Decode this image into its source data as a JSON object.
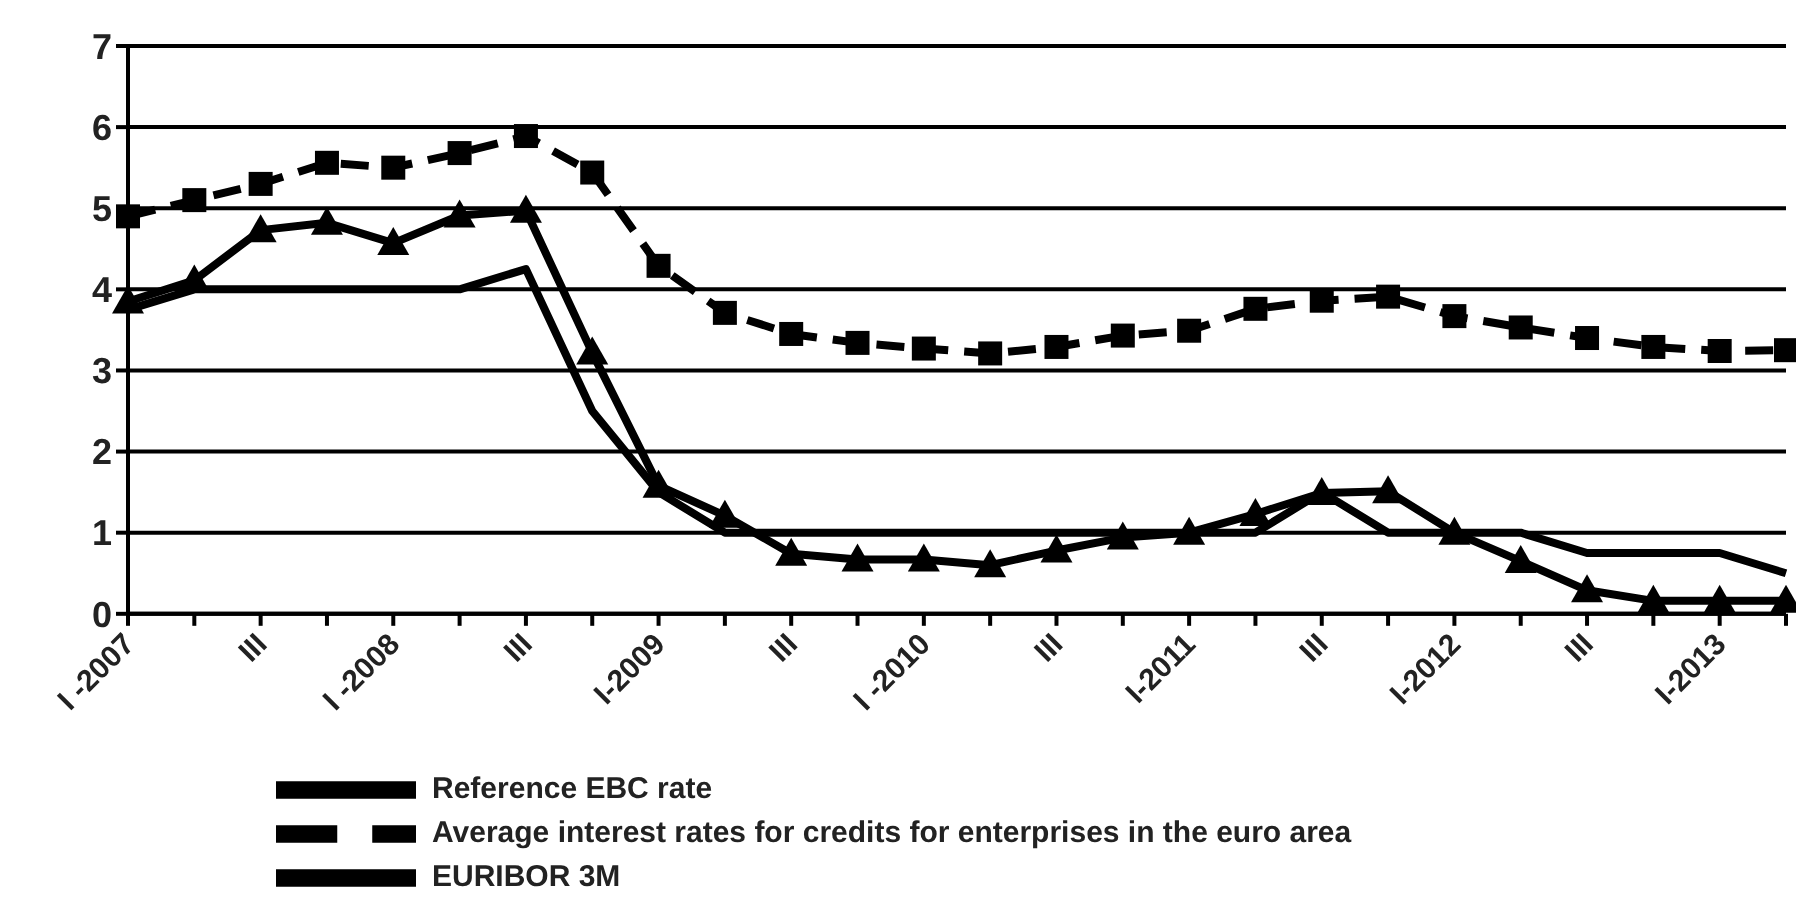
{
  "chart_data": {
    "type": "line",
    "categories": [
      "I -2007",
      null,
      "III",
      null,
      "I -2008",
      null,
      "III",
      null,
      "I-2009",
      null,
      "III",
      null,
      "I -2010",
      null,
      "III",
      null,
      "I-2011",
      null,
      "III",
      null,
      "I-2012",
      null,
      "III",
      null,
      "I-2013",
      null
    ],
    "series": [
      {
        "name": "Reference EBC rate",
        "color": "#000000",
        "marker": "none",
        "line_style": "solid",
        "values": [
          3.75,
          4.0,
          4.0,
          4.0,
          4.0,
          4.0,
          4.25,
          2.5,
          1.5,
          1.0,
          1.0,
          1.0,
          1.0,
          1.0,
          1.0,
          1.0,
          1.0,
          1.0,
          1.5,
          1.0,
          1.0,
          1.0,
          0.75,
          0.75,
          0.75,
          0.5
        ]
      },
      {
        "name": "Average interest rates for credits for enterprises in the euro area",
        "color": "#000000",
        "marker": "square",
        "line_style": "dashed",
        "values": [
          4.9,
          5.1,
          5.3,
          5.56,
          5.5,
          5.68,
          5.89,
          5.44,
          4.29,
          3.71,
          3.45,
          3.34,
          3.27,
          3.21,
          3.29,
          3.43,
          3.49,
          3.76,
          3.86,
          3.91,
          3.67,
          3.53,
          3.4,
          3.29,
          3.24,
          3.25
        ]
      },
      {
        "name": "EURIBOR 3M",
        "color": "#000000",
        "marker": "triangle",
        "line_style": "solid",
        "values": [
          3.85,
          4.11,
          4.73,
          4.82,
          4.57,
          4.91,
          4.97,
          3.22,
          1.58,
          1.21,
          0.74,
          0.67,
          0.67,
          0.6,
          0.78,
          0.94,
          1.0,
          1.23,
          1.49,
          1.51,
          1.0,
          0.65,
          0.29,
          0.16,
          0.16,
          0.16
        ]
      }
    ],
    "ylim": [
      0,
      7
    ],
    "yticks": [
      0,
      1,
      2,
      3,
      4,
      5,
      6,
      7
    ],
    "grid": "y",
    "legend": "bottom"
  }
}
